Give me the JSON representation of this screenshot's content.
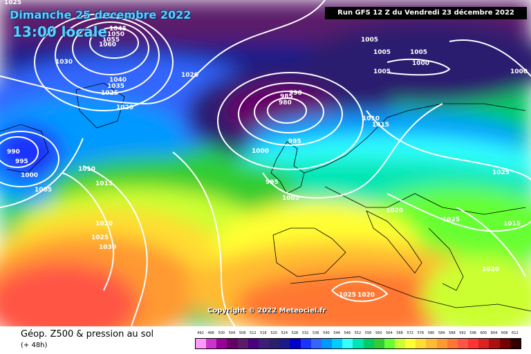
{
  "header": {
    "date": "Dimanche 25 decembre 2022",
    "time": "13:00 locale",
    "run": "Run GFS 12 Z du Vendredi 23 décembre 2022"
  },
  "copyright": "Copyright © 2022 Meteociel.fr",
  "footer": {
    "title": "Géop. Z500 & pression au sol",
    "subtitle": "(+ 48h)"
  },
  "scale": {
    "labels": [
      "492",
      "496",
      "500",
      "504",
      "508",
      "512",
      "516",
      "520",
      "524",
      "528",
      "532",
      "536",
      "540",
      "544",
      "548",
      "552",
      "556",
      "560",
      "564",
      "568",
      "572",
      "576",
      "580",
      "584",
      "588",
      "592",
      "596",
      "600",
      "604",
      "608",
      "612"
    ],
    "colors": [
      "#ff99ff",
      "#cc33cc",
      "#990099",
      "#660066",
      "#5c1a6b",
      "#4b0082",
      "#3d1f7a",
      "#2c1f6e",
      "#1a1a8a",
      "#0000cc",
      "#1a33ff",
      "#3366ff",
      "#0099ff",
      "#00ccff",
      "#33ffff",
      "#00e6b3",
      "#00cc66",
      "#33cc33",
      "#66ff33",
      "#ccff33",
      "#ffff33",
      "#ffdd33",
      "#ffbb33",
      "#ff9933",
      "#ff7733",
      "#ff5544",
      "#ff3333",
      "#dd2222",
      "#aa1111",
      "#770000",
      "#330000"
    ]
  },
  "isobars": [
    "1025",
    "1045",
    "1050",
    "1055",
    "1060",
    "1030",
    "1040",
    "1035",
    "1025",
    "1020",
    "1020",
    "990",
    "995",
    "1000",
    "1005",
    "1010",
    "1015",
    "1020",
    "1025",
    "1030",
    "1020",
    "985",
    "990",
    "980",
    "995",
    "1000",
    "995",
    "1005",
    "1005",
    "1005",
    "1005",
    "1000",
    "1005",
    "1000",
    "1010",
    "1015",
    "1025",
    "1020",
    "1025",
    "1015",
    "1020",
    "1025"
  ]
}
